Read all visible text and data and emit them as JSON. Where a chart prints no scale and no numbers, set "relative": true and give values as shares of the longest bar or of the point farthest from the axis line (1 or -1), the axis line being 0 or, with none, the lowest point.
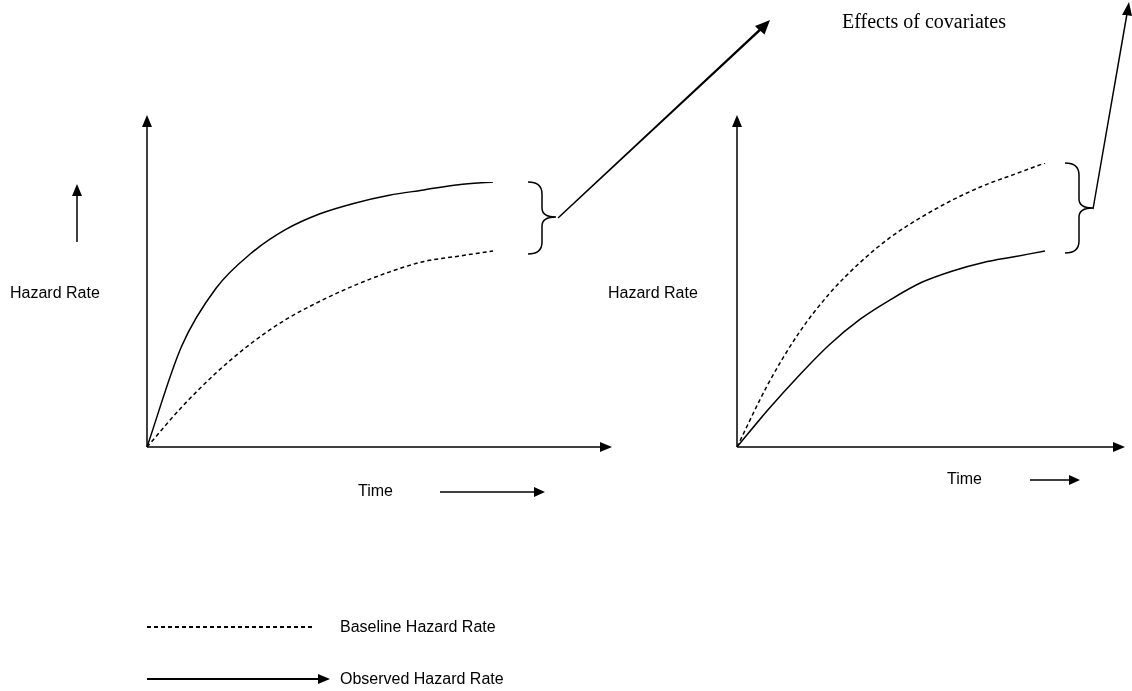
{
  "chart_data": [
    {
      "type": "line",
      "relative": true,
      "ylabel": "Hazard Rate",
      "xlabel": "Time",
      "legend": "bottom",
      "marker": "none",
      "categories": [
        null,
        null,
        null,
        null,
        null,
        null,
        null,
        null,
        null,
        null,
        null
      ],
      "series": [
        {
          "name": "Baseline Hazard Rate",
          "color": "#000000",
          "line_style": "dashed",
          "values": [
            0,
            0.15,
            0.28,
            0.39,
            0.48,
            0.55,
            0.61,
            0.66,
            0.7,
            0.72,
            0.74
          ]
        },
        {
          "name": "Observed Hazard Rate",
          "color": "#000000",
          "line_style": "solid",
          "values": [
            0,
            0.38,
            0.6,
            0.73,
            0.82,
            0.88,
            0.92,
            0.95,
            0.97,
            0.99,
            1
          ]
        }
      ]
    },
    {
      "type": "line",
      "relative": true,
      "ylabel": "Hazard Rate",
      "xlabel": "Time",
      "marker": "none",
      "annotations": [
        "Effects of covariates"
      ],
      "categories": [
        null,
        null,
        null,
        null,
        null,
        null,
        null,
        null,
        null,
        null,
        null
      ],
      "series": [
        {
          "color": "#000000",
          "line_style": "dashed",
          "values": [
            0,
            0.22,
            0.4,
            0.54,
            0.65,
            0.74,
            0.81,
            0.87,
            0.92,
            0.96,
            1
          ]
        },
        {
          "color": "#000000",
          "line_style": "solid",
          "values": [
            0,
            0.13,
            0.25,
            0.36,
            0.45,
            0.52,
            0.58,
            0.62,
            0.65,
            0.67,
            0.69
          ]
        }
      ]
    }
  ]
}
